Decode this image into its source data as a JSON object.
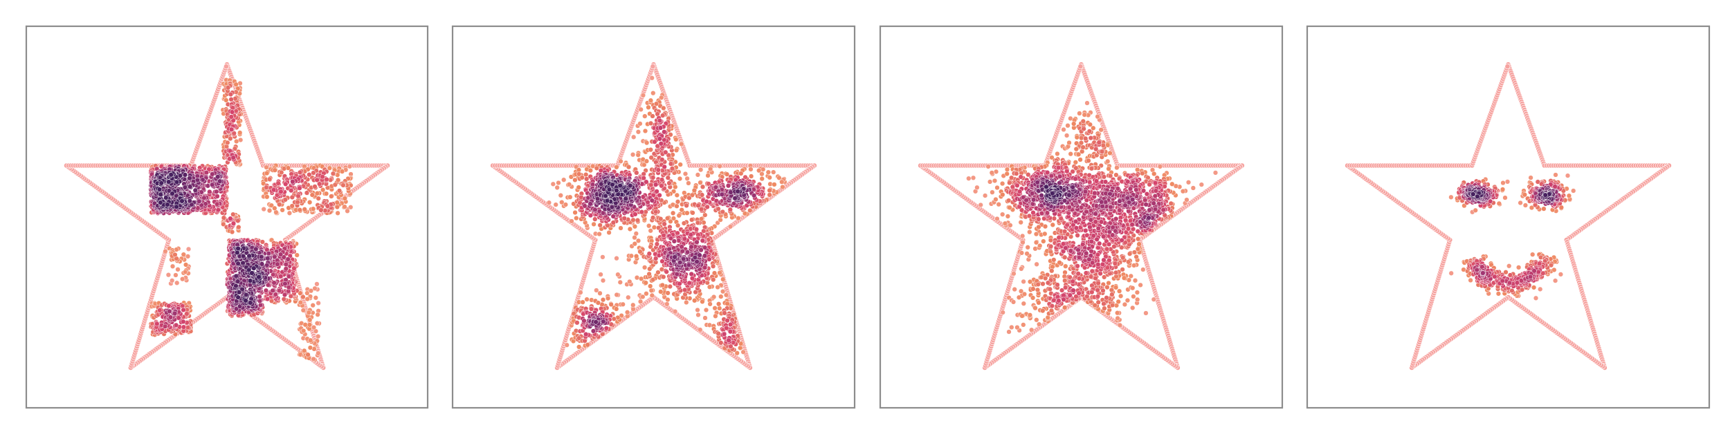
{
  "chart_data": [
    {
      "type": "scatter",
      "title": "",
      "xlabel": "",
      "ylabel": "",
      "xlim": [
        -1.0,
        1.0
      ],
      "ylim": [
        -1.0,
        1.0
      ],
      "grid": false,
      "legend": "none",
      "colormap": [
        "#f6a3a0",
        "#ef8a62",
        "#d6456c",
        "#8e2f72",
        "#47215f"
      ],
      "series": [
        {
          "role": "star-outline",
          "color": "#f6a3a0",
          "vertices": [
            [
              0.0,
              0.8
            ],
            [
              0.18,
              0.27
            ],
            [
              0.8,
              0.27
            ],
            [
              0.29,
              -0.12
            ],
            [
              0.48,
              -0.79
            ],
            [
              0.0,
              -0.42
            ],
            [
              -0.48,
              -0.79
            ],
            [
              -0.29,
              -0.12
            ],
            [
              -0.8,
              0.27
            ],
            [
              -0.18,
              0.27
            ]
          ]
        },
        {
          "role": "density-samples",
          "clusters": [
            {
              "shape": "rect",
              "x": [
                -0.38,
                -0.18
              ],
              "y": [
                0.02,
                0.27
              ],
              "n": 420
            },
            {
              "shape": "rect",
              "x": [
                -0.18,
                0.0
              ],
              "y": [
                0.02,
                0.27
              ],
              "n": 260
            },
            {
              "shape": "rect",
              "x": [
                0.0,
                0.18
              ],
              "y": [
                -0.52,
                -0.12
              ],
              "n": 520
            },
            {
              "shape": "rect",
              "x": [
                0.18,
                0.35
              ],
              "y": [
                -0.45,
                -0.12
              ],
              "n": 260
            },
            {
              "shape": "rect",
              "x": [
                0.18,
                0.62
              ],
              "y": [
                0.02,
                0.27
              ],
              "n": 320
            },
            {
              "shape": "rect",
              "x": [
                -0.02,
                0.07
              ],
              "y": [
                0.27,
                0.72
              ],
              "n": 150
            },
            {
              "shape": "rect",
              "x": [
                -0.02,
                0.06
              ],
              "y": [
                -0.08,
                0.02
              ],
              "n": 40
            },
            {
              "shape": "rect",
              "x": [
                -0.38,
                -0.18
              ],
              "y": [
                -0.62,
                -0.45
              ],
              "n": 160
            },
            {
              "shape": "rect",
              "x": [
                0.36,
                0.46
              ],
              "y": [
                -0.75,
                -0.35
              ],
              "n": 70
            },
            {
              "shape": "rect",
              "x": [
                -0.31,
                -0.19
              ],
              "y": [
                -0.35,
                -0.15
              ],
              "n": 40
            }
          ]
        }
      ]
    },
    {
      "type": "scatter",
      "title": "",
      "xlabel": "",
      "ylabel": "",
      "xlim": [
        -1.0,
        1.0
      ],
      "ylim": [
        -1.0,
        1.0
      ],
      "grid": false,
      "legend": "none",
      "colormap": [
        "#f6a3a0",
        "#ef8a62",
        "#d6456c",
        "#8e2f72",
        "#47215f"
      ],
      "series": [
        {
          "role": "star-outline",
          "color": "#f6a3a0",
          "vertices": [
            [
              0.0,
              0.8
            ],
            [
              0.18,
              0.27
            ],
            [
              0.8,
              0.27
            ],
            [
              0.29,
              -0.12
            ],
            [
              0.48,
              -0.79
            ],
            [
              0.0,
              -0.42
            ],
            [
              -0.48,
              -0.79
            ],
            [
              -0.29,
              -0.12
            ],
            [
              -0.8,
              0.27
            ],
            [
              -0.18,
              0.27
            ]
          ]
        },
        {
          "role": "density-samples",
          "clusters": [
            {
              "shape": "blob",
              "cx": -0.2,
              "cy": 0.12,
              "sx": 0.11,
              "sy": 0.09,
              "n": 620
            },
            {
              "shape": "blob",
              "cx": 0.15,
              "cy": -0.22,
              "sx": 0.12,
              "sy": 0.13,
              "n": 620
            },
            {
              "shape": "blob",
              "cx": 0.4,
              "cy": 0.12,
              "sx": 0.13,
              "sy": 0.06,
              "n": 360
            },
            {
              "shape": "blob",
              "cx": 0.03,
              "cy": 0.38,
              "sx": 0.05,
              "sy": 0.16,
              "n": 230
            },
            {
              "shape": "blob",
              "cx": -0.3,
              "cy": -0.55,
              "sx": 0.09,
              "sy": 0.08,
              "n": 260
            },
            {
              "shape": "blob",
              "cx": 0.37,
              "cy": -0.55,
              "sx": 0.05,
              "sy": 0.12,
              "n": 150
            }
          ]
        }
      ]
    },
    {
      "type": "scatter",
      "title": "",
      "xlabel": "",
      "ylabel": "",
      "xlim": [
        -1.0,
        1.0
      ],
      "ylim": [
        -1.0,
        1.0
      ],
      "grid": false,
      "legend": "none",
      "colormap": [
        "#f6a3a0",
        "#ef8a62",
        "#d6456c",
        "#8e2f72",
        "#47215f"
      ],
      "series": [
        {
          "role": "star-outline",
          "color": "#f6a3a0",
          "vertices": [
            [
              0.0,
              0.8
            ],
            [
              0.18,
              0.27
            ],
            [
              0.8,
              0.27
            ],
            [
              0.29,
              -0.12
            ],
            [
              0.48,
              -0.79
            ],
            [
              0.0,
              -0.42
            ],
            [
              -0.48,
              -0.79
            ],
            [
              -0.29,
              -0.12
            ],
            [
              -0.8,
              0.27
            ],
            [
              -0.18,
              0.27
            ]
          ]
        },
        {
          "role": "density-samples",
          "clusters": [
            {
              "shape": "blob",
              "cx": -0.15,
              "cy": 0.13,
              "sx": 0.14,
              "sy": 0.09,
              "n": 650
            },
            {
              "shape": "blob",
              "cx": 0.27,
              "cy": 0.07,
              "sx": 0.13,
              "sy": 0.1,
              "n": 520
            },
            {
              "shape": "blob",
              "cx": 0.05,
              "cy": -0.15,
              "sx": 0.16,
              "sy": 0.14,
              "n": 620
            },
            {
              "shape": "blob",
              "cx": -0.05,
              "cy": -0.45,
              "sx": 0.14,
              "sy": 0.09,
              "n": 330
            },
            {
              "shape": "blob",
              "cx": 0.05,
              "cy": 0.38,
              "sx": 0.07,
              "sy": 0.13,
              "n": 170
            }
          ]
        }
      ]
    },
    {
      "type": "scatter",
      "title": "",
      "xlabel": "",
      "ylabel": "",
      "xlim": [
        -1.0,
        1.0
      ],
      "ylim": [
        -1.0,
        1.0
      ],
      "grid": false,
      "legend": "none",
      "colormap": [
        "#f6a3a0",
        "#ef8a62",
        "#d6456c",
        "#8e2f72",
        "#47215f"
      ],
      "series": [
        {
          "role": "star-outline",
          "color": "#f6a3a0",
          "vertices": [
            [
              0.0,
              0.8
            ],
            [
              0.18,
              0.27
            ],
            [
              0.8,
              0.27
            ],
            [
              0.29,
              -0.12
            ],
            [
              0.48,
              -0.79
            ],
            [
              0.0,
              -0.42
            ],
            [
              -0.48,
              -0.79
            ],
            [
              -0.29,
              -0.12
            ],
            [
              -0.8,
              0.27
            ],
            [
              -0.18,
              0.27
            ]
          ]
        },
        {
          "role": "density-samples",
          "clusters": [
            {
              "shape": "blob",
              "cx": -0.15,
              "cy": 0.12,
              "sx": 0.05,
              "sy": 0.035,
              "n": 190
            },
            {
              "shape": "blob",
              "cx": 0.19,
              "cy": 0.12,
              "sx": 0.05,
              "sy": 0.035,
              "n": 190
            },
            {
              "shape": "arc",
              "cx": 0.0,
              "cy": -0.15,
              "r": 0.2,
              "angle_start": 200,
              "angle_end": 345,
              "spread": 0.035,
              "n": 300
            }
          ]
        }
      ]
    }
  ]
}
